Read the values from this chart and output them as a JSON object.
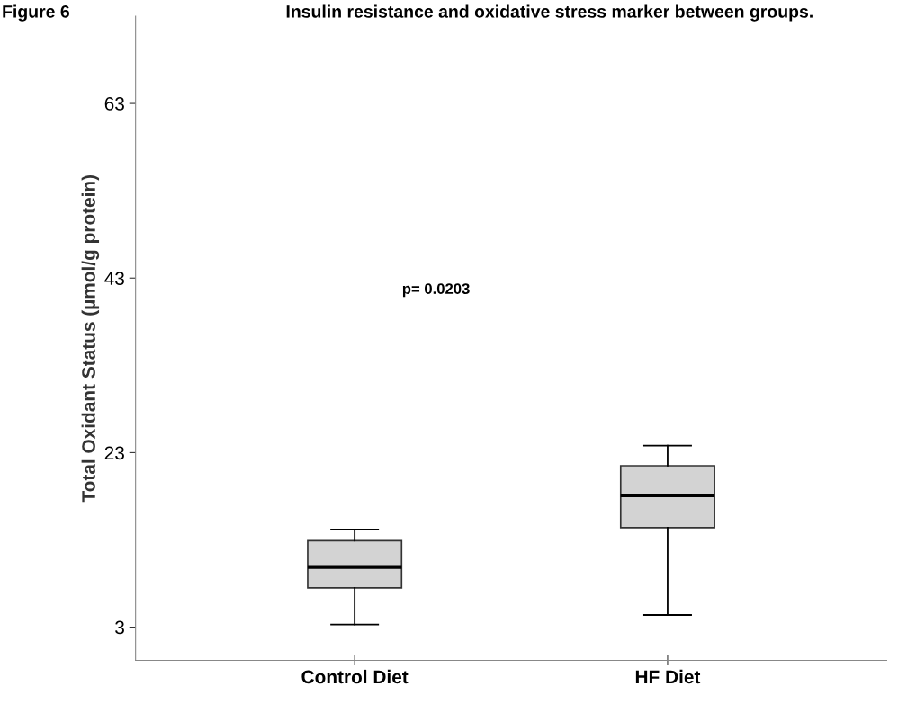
{
  "chart_data": {
    "type": "box",
    "title": "Insulin resistance and oxidative stress marker between groups.",
    "ylabel": "Total Oxidant Status (µmol/g protein)",
    "categories": [
      "Control Diet",
      "HF Diet"
    ],
    "boxes": [
      {
        "low": 3.3,
        "q1": 7.5,
        "median": 9.9,
        "q3": 12.9,
        "high": 14.2
      },
      {
        "low": 4.4,
        "q1": 14.4,
        "median": 18.1,
        "q3": 21.5,
        "high": 23.8
      }
    ],
    "color": "#d3d3d3",
    "ylim": [
      -0.8,
      73
    ],
    "yticks": [
      3,
      23,
      43,
      63
    ],
    "annotations": [
      "Figure 6",
      "p= 0.0203"
    ],
    "grid": false
  }
}
